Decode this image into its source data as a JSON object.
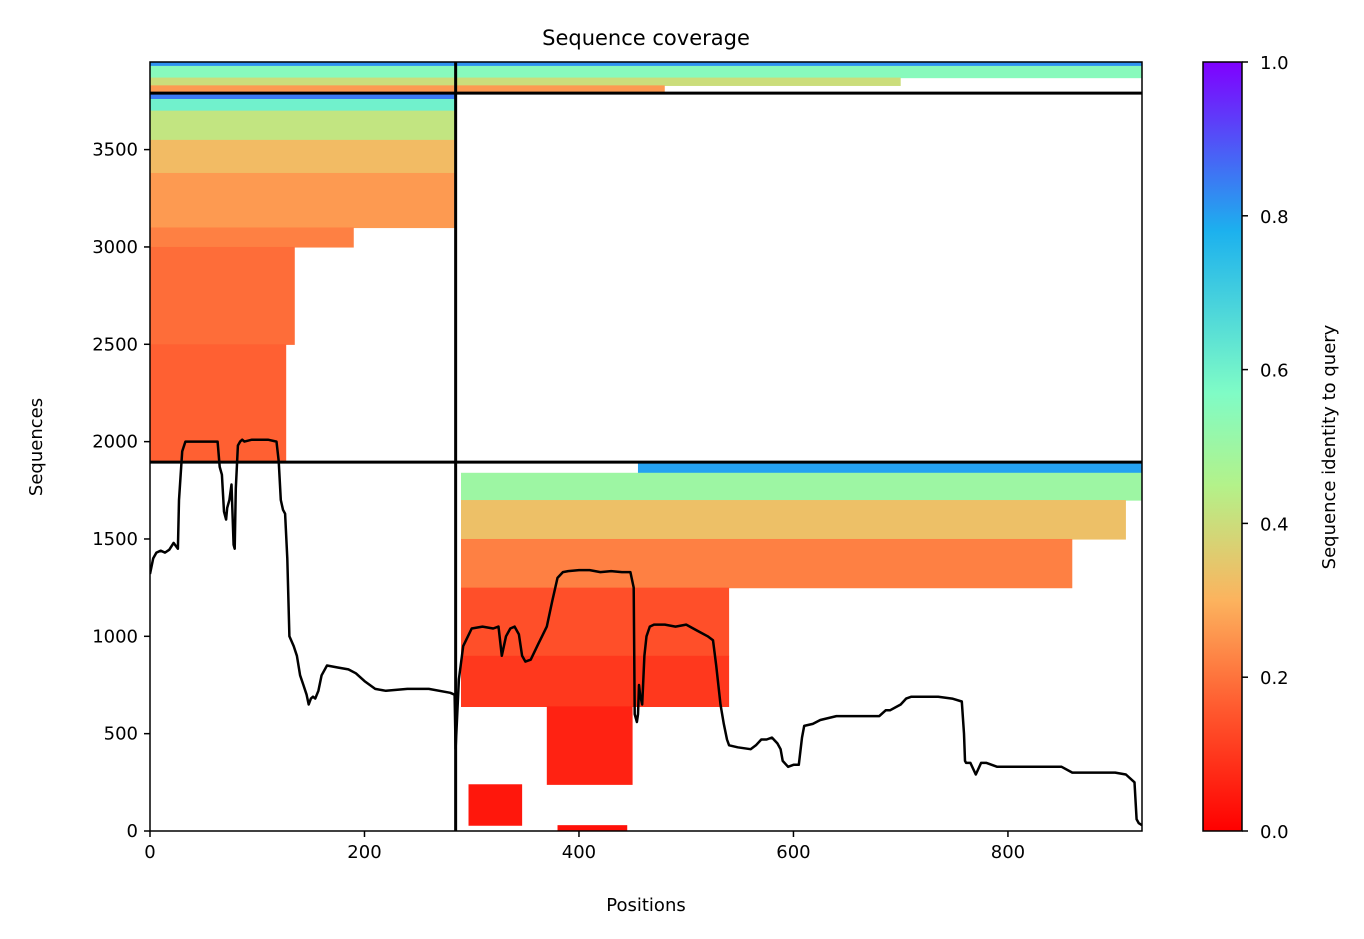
{
  "chart_data": {
    "type": "heatmap",
    "title": "Sequence coverage",
    "xlabel": "Positions",
    "ylabel": "Sequences",
    "xlim": [
      0,
      925
    ],
    "ylim": [
      0,
      3950
    ],
    "xticks": [
      0,
      200,
      400,
      600,
      800
    ],
    "yticks": [
      0,
      500,
      1000,
      1500,
      2000,
      2500,
      3000,
      3500
    ],
    "colorbar": {
      "label": "Sequence identity to query",
      "range": [
        0,
        1
      ],
      "ticks": [
        "0.0",
        "0.2",
        "0.4",
        "0.6",
        "0.8",
        "1.0"
      ],
      "colormap": "rainbow",
      "stops": [
        "#ff0000",
        "#ff5a2f",
        "#fcb35e",
        "#b3f28a",
        "#7ffcc6",
        "#1cb1ee",
        "#8000ff"
      ]
    },
    "grid": false,
    "chain_boundary_x": 285,
    "chain_boundary_y": [
      1895,
      3790
    ],
    "blocks": [
      {
        "name": "chain-1-alignment",
        "x_start": 0,
        "y_range": [
          1895,
          3790
        ],
        "rows": [
          {
            "y_from": 3790,
            "y_to": 3760,
            "identity": 0.85,
            "x_end": 285
          },
          {
            "y_from": 3760,
            "y_to": 3700,
            "identity": 0.6,
            "x_end": 285
          },
          {
            "y_from": 3700,
            "y_to": 3550,
            "identity": 0.42,
            "x_end": 285
          },
          {
            "y_from": 3550,
            "y_to": 3380,
            "identity": 0.32,
            "x_end": 285
          },
          {
            "y_from": 3380,
            "y_to": 3100,
            "identity": 0.26,
            "x_end": 285
          },
          {
            "y_from": 3100,
            "y_to": 3000,
            "identity": 0.22,
            "x_end": 190
          },
          {
            "y_from": 3000,
            "y_to": 2500,
            "identity": 0.19,
            "x_end": 135
          },
          {
            "y_from": 2500,
            "y_to": 1895,
            "identity": 0.17,
            "x_end": 127
          }
        ]
      },
      {
        "name": "chain-2-alignment",
        "x_start": 285,
        "y_range": [
          0,
          1895
        ],
        "rows": [
          {
            "y_from": 1895,
            "y_to": 1840,
            "identity": 0.8,
            "x_start": 455,
            "x_end": 925
          },
          {
            "y_from": 1840,
            "y_to": 1700,
            "identity": 0.5,
            "x_start": 290,
            "x_end": 925
          },
          {
            "y_from": 1700,
            "y_to": 1500,
            "identity": 0.33,
            "x_start": 290,
            "x_end": 910
          },
          {
            "y_from": 1500,
            "y_to": 1250,
            "identity": 0.22,
            "x_start": 290,
            "x_end": 860
          },
          {
            "y_from": 1250,
            "y_to": 900,
            "identity": 0.14,
            "x_start": 290,
            "x_end": 540
          },
          {
            "y_from": 900,
            "y_to": 640,
            "identity": 0.1,
            "x_start": 290,
            "x_end": 540
          },
          {
            "y_from": 640,
            "y_to": 240,
            "identity": 0.06,
            "x_start": 370,
            "x_end": 450
          },
          {
            "y_from": 240,
            "y_to": 30,
            "identity": 0.04,
            "x_start": 297,
            "x_end": 347
          },
          {
            "y_from": 30,
            "y_to": 0,
            "identity": 0.03,
            "x_start": 380,
            "x_end": 445
          }
        ]
      },
      {
        "name": "paired-alignment",
        "x_start": 0,
        "y_range": [
          3790,
          3950
        ],
        "rows": [
          {
            "y_from": 3950,
            "y_to": 3930,
            "identity": 0.82,
            "x_start": 0,
            "x_end": 925
          },
          {
            "y_from": 3930,
            "y_to": 3870,
            "identity": 0.55,
            "x_start": 0,
            "x_end": 925
          },
          {
            "y_from": 3870,
            "y_to": 3830,
            "identity": 0.4,
            "x_start": 0,
            "x_end": 700
          },
          {
            "y_from": 3830,
            "y_to": 3790,
            "identity": 0.26,
            "x_start": 0,
            "x_end": 480
          }
        ]
      }
    ],
    "coverage_line": {
      "x": [
        0,
        3,
        6,
        10,
        14,
        18,
        22,
        26,
        27,
        30,
        33,
        40,
        50,
        63,
        65,
        67,
        69,
        71,
        72,
        74,
        76,
        78,
        79,
        80,
        82,
        84,
        86,
        88,
        95,
        110,
        118,
        120,
        122,
        124,
        126,
        128,
        130,
        134,
        137,
        140,
        143,
        146,
        148,
        150,
        152,
        154,
        157,
        160,
        165,
        175,
        185,
        192,
        196,
        200,
        210,
        220,
        240,
        260,
        280,
        284,
        285,
        288,
        292,
        300,
        310,
        320,
        325,
        328,
        332,
        336,
        340,
        344,
        347,
        350,
        355,
        362,
        370,
        375,
        380,
        385,
        390,
        400,
        410,
        420,
        430,
        440,
        448,
        451,
        452,
        453,
        454,
        455,
        456,
        457,
        459,
        461,
        463,
        466,
        470,
        480,
        490,
        500,
        510,
        520,
        525,
        528,
        532,
        535,
        538,
        540,
        548,
        560,
        565,
        570,
        575,
        580,
        585,
        588,
        590,
        595,
        600,
        605,
        608,
        610,
        618,
        625,
        640,
        660,
        680,
        686,
        690,
        700,
        705,
        710,
        720,
        735,
        748,
        757,
        759,
        760,
        761,
        765,
        770,
        775,
        780,
        790,
        800,
        820,
        850,
        860,
        900,
        910,
        918,
        920,
        922,
        925
      ],
      "y": [
        1320,
        1400,
        1430,
        1440,
        1430,
        1445,
        1480,
        1450,
        1700,
        1950,
        2000,
        2000,
        2000,
        2000,
        1870,
        1830,
        1640,
        1600,
        1660,
        1700,
        1780,
        1470,
        1450,
        1760,
        1980,
        2000,
        2010,
        2000,
        2010,
        2010,
        2000,
        1900,
        1700,
        1650,
        1630,
        1400,
        1000,
        950,
        900,
        800,
        750,
        700,
        650,
        680,
        690,
        680,
        720,
        800,
        850,
        840,
        830,
        810,
        790,
        770,
        730,
        720,
        730,
        730,
        710,
        700,
        420,
        780,
        950,
        1040,
        1050,
        1040,
        1050,
        900,
        1000,
        1040,
        1050,
        1010,
        900,
        870,
        880,
        960,
        1050,
        1180,
        1300,
        1330,
        1335,
        1340,
        1340,
        1330,
        1335,
        1330,
        1330,
        1250,
        600,
        580,
        560,
        600,
        750,
        700,
        650,
        900,
        1000,
        1050,
        1060,
        1060,
        1050,
        1060,
        1030,
        1000,
        980,
        850,
        650,
        550,
        470,
        440,
        430,
        420,
        440,
        470,
        470,
        480,
        450,
        420,
        360,
        330,
        340,
        340,
        480,
        540,
        550,
        570,
        590,
        590,
        590,
        620,
        620,
        650,
        680,
        690,
        690,
        690,
        680,
        665,
        500,
        360,
        350,
        350,
        290,
        350,
        350,
        330,
        330,
        330,
        330,
        300,
        300,
        290,
        250,
        60,
        40,
        30,
        25
      ]
    }
  }
}
